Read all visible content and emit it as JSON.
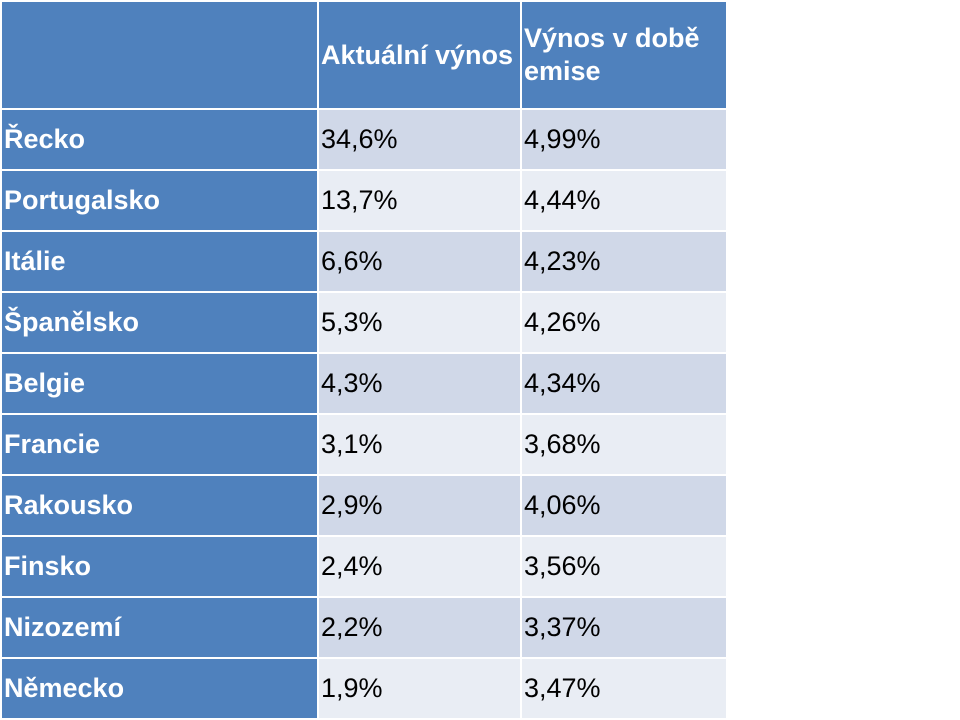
{
  "chart_data": {
    "type": "table",
    "columns": [
      "",
      "Aktuální výnos",
      "Výnos v době emise"
    ],
    "rows": [
      {
        "label": "Řecko",
        "current": "34,6%",
        "issue": "4,99%"
      },
      {
        "label": "Portugalsko",
        "current": "13,7%",
        "issue": "4,44%"
      },
      {
        "label": "Itálie",
        "current": "6,6%",
        "issue": "4,23%"
      },
      {
        "label": "Španělsko",
        "current": "5,3%",
        "issue": "4,26%"
      },
      {
        "label": "Belgie",
        "current": "4,3%",
        "issue": "4,34%"
      },
      {
        "label": "Francie",
        "current": "3,1%",
        "issue": "3,68%"
      },
      {
        "label": "Rakousko",
        "current": "2,9%",
        "issue": "4,06%"
      },
      {
        "label": "Finsko",
        "current": "2,4%",
        "issue": "3,56%"
      },
      {
        "label": "Nizozemí",
        "current": "2,2%",
        "issue": "3,37%"
      },
      {
        "label": "Německo",
        "current": "1,9%",
        "issue": "3,47%"
      }
    ],
    "colors": {
      "header_fill": "#4f81bd",
      "band_dark": "#d0d8e8",
      "band_light": "#e9edf4"
    }
  }
}
